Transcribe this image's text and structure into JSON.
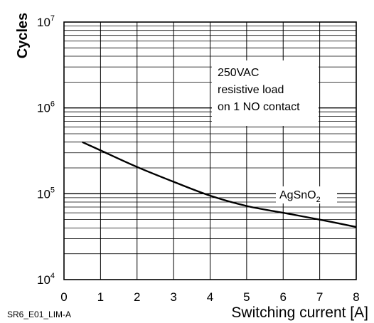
{
  "chart_data": {
    "type": "line",
    "title": "",
    "ylabel": "Cycles",
    "xlabel": "Switching current [A]",
    "scale_y": "log",
    "xlim": [
      0,
      8
    ],
    "ylim": [
      10000,
      10000000
    ],
    "x_ticks": [
      "0",
      "1",
      "2",
      "3",
      "4",
      "5",
      "6",
      "7",
      "8"
    ],
    "y_ticks": [
      {
        "base": "10",
        "exp": "4",
        "value": 10000
      },
      {
        "base": "10",
        "exp": "5",
        "value": 100000
      },
      {
        "base": "10",
        "exp": "6",
        "value": 1000000
      },
      {
        "base": "10",
        "exp": "7",
        "value": 10000000
      }
    ],
    "grid": true,
    "annotation_lines": [
      "250VAC",
      "resistive load",
      "on 1 NO contact"
    ],
    "series": [
      {
        "name": "AgSnO",
        "name_subscript": "2",
        "x": [
          0.5,
          1,
          2,
          3,
          4,
          5,
          6,
          7,
          8
        ],
        "y": [
          400000,
          320000,
          205000,
          138000,
          95000,
          72000,
          60000,
          50000,
          41000
        ]
      }
    ],
    "figure_code": "SR6_E01_LIM-A"
  },
  "colors": {
    "axis": "#000000",
    "grid": "#000000",
    "curve": "#000000",
    "background": "#ffffff"
  }
}
